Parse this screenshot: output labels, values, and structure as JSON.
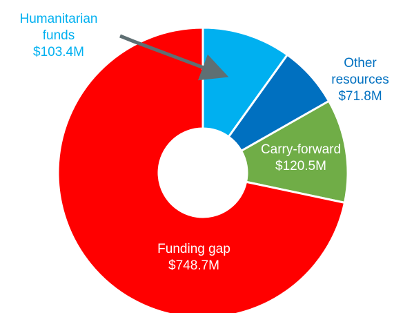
{
  "chart_data": {
    "type": "pie",
    "variant": "donut",
    "title": "",
    "slices": [
      {
        "label": "Humanitarian funds",
        "label_lines": [
          "Humanitarian",
          "funds",
          "$103.4M"
        ],
        "value": 103.4,
        "value_text": "$103.4M",
        "color": "#00b0f0",
        "label_color": "#00b0f0",
        "label_placement": "outside-top-left"
      },
      {
        "label": "Other resources",
        "label_lines": [
          "Other",
          "resources",
          "$71.8M"
        ],
        "value": 71.8,
        "value_text": "$71.8M",
        "color": "#0070c0",
        "label_color": "#0070c0",
        "label_placement": "outside-top-right"
      },
      {
        "label": "Carry-forward",
        "label_lines": [
          "Carry-forward",
          "$120.5M"
        ],
        "value": 120.5,
        "value_text": "$120.5M",
        "color": "#70ad47",
        "label_color": "#ffffff",
        "label_placement": "inside"
      },
      {
        "label": "Funding gap",
        "label_lines": [
          "Funding gap",
          "$748.7M"
        ],
        "value": 748.7,
        "value_text": "$748.7M",
        "color": "#ff0000",
        "label_color": "#ffffff",
        "label_placement": "inside"
      }
    ],
    "start_angle": "12 o'clock",
    "direction": "clockwise",
    "leader_arrow": {
      "from": "Humanitarian funds label",
      "to": "Humanitarian funds slice",
      "color": "#5f6f73"
    },
    "legend": "none",
    "slice_border_color": "#ffffff"
  }
}
